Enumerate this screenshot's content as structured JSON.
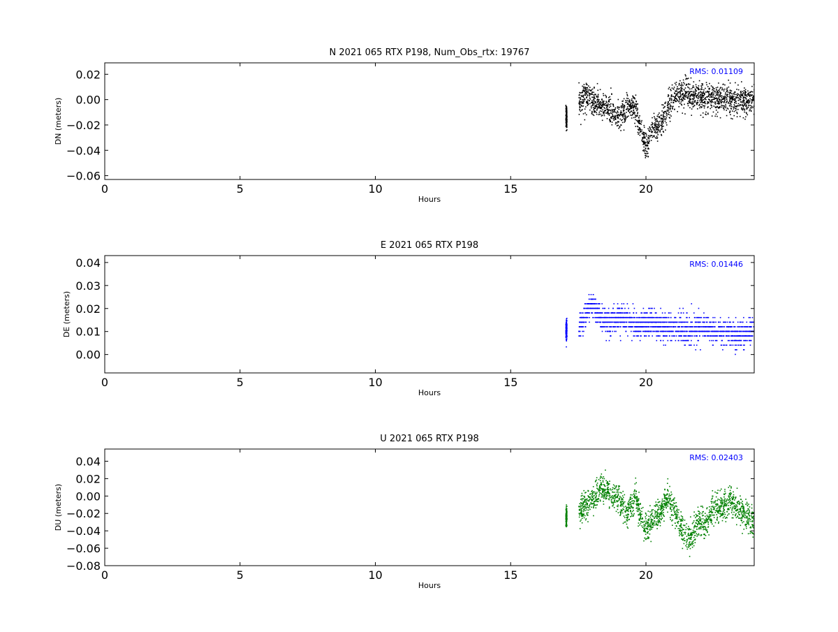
{
  "chart_data": [
    {
      "type": "scatter",
      "title": "N 2021 065 RTX  P198, Num_Obs_rtx: 19767",
      "xlabel": "Hours",
      "ylabel": "DN (meters)",
      "xlim": [
        0,
        24
      ],
      "ylim": [
        -0.063,
        0.029
      ],
      "xticks": [
        0,
        5,
        10,
        15,
        20
      ],
      "xtick_labels": [
        "0",
        "5",
        "10",
        "15",
        "20"
      ],
      "yticks": [
        0.02,
        0.0,
        -0.02,
        -0.04,
        -0.06
      ],
      "ytick_labels": [
        "0.02",
        "0.00",
        "−0.02",
        "−0.04",
        "−0.06"
      ],
      "color": "#000000",
      "annotation": "RMS:  0.01109",
      "annotation_color": "#0000ff",
      "series_profile": {
        "x": [
          17.0,
          17.5,
          17.8,
          18.1,
          18.5,
          18.8,
          19.0,
          19.3,
          19.6,
          19.8,
          20.0,
          20.2,
          20.5,
          20.8,
          21.0,
          21.3,
          21.6,
          22.0,
          22.5,
          23.0,
          23.5,
          24.0
        ],
        "y": [
          -0.014,
          -0.002,
          0.004,
          -0.004,
          -0.006,
          -0.01,
          -0.016,
          -0.006,
          -0.008,
          -0.026,
          -0.04,
          -0.024,
          -0.02,
          -0.006,
          0.002,
          0.005,
          0.004,
          0.002,
          0.0,
          0.0,
          -0.002,
          0.0
        ]
      }
    },
    {
      "type": "scatter",
      "title": "E 2021 065 RTX  P198",
      "xlabel": "Hours",
      "ylabel": "DE (meters)",
      "xlim": [
        0,
        24
      ],
      "ylim": [
        -0.008,
        0.043
      ],
      "xticks": [
        0,
        5,
        10,
        15,
        20
      ],
      "xtick_labels": [
        "0",
        "5",
        "10",
        "15",
        "20"
      ],
      "yticks": [
        0.04,
        0.03,
        0.02,
        0.01,
        0.0
      ],
      "ytick_labels": [
        "0.04",
        "0.03",
        "0.02",
        "0.01",
        "0.00"
      ],
      "color": "#0000ff",
      "annotation": "RMS:  0.01446",
      "annotation_color": "#0000ff",
      "series_profile": {
        "x": [
          17.0,
          17.5,
          17.8,
          18.0,
          18.3,
          18.6,
          19.0,
          19.4,
          19.7,
          20.0,
          20.5,
          21.0,
          21.5,
          22.0,
          22.5,
          23.0,
          23.5,
          24.0
        ],
        "y": [
          0.01,
          0.012,
          0.018,
          0.022,
          0.016,
          0.014,
          0.016,
          0.014,
          0.012,
          0.014,
          0.012,
          0.012,
          0.01,
          0.012,
          0.01,
          0.01,
          0.008,
          0.012
        ]
      }
    },
    {
      "type": "scatter",
      "title": "U 2021 065 RTX  P198",
      "xlabel": "Hours",
      "ylabel": "DU (meters)",
      "xlim": [
        0,
        24
      ],
      "ylim": [
        -0.08,
        0.054
      ],
      "xticks": [
        0,
        5,
        10,
        15,
        20
      ],
      "xtick_labels": [
        "0",
        "5",
        "10",
        "15",
        "20"
      ],
      "yticks": [
        0.04,
        0.02,
        0.0,
        -0.02,
        -0.04,
        -0.06,
        -0.08
      ],
      "ytick_labels": [
        "0.04",
        "0.02",
        "0.00",
        "−0.02",
        "−0.04",
        "−0.06",
        "−0.08"
      ],
      "color": "#008000",
      "annotation": "RMS:  0.02403",
      "annotation_color": "#0000ff",
      "series_profile": {
        "x": [
          17.0,
          17.5,
          17.8,
          18.0,
          18.3,
          18.6,
          19.0,
          19.3,
          19.6,
          19.9,
          20.2,
          20.5,
          20.8,
          21.0,
          21.3,
          21.6,
          21.9,
          22.2,
          22.5,
          22.8,
          23.1,
          23.4,
          23.7,
          24.0
        ],
        "y": [
          -0.025,
          -0.018,
          -0.01,
          -0.005,
          0.01,
          0.005,
          -0.005,
          -0.02,
          0.0,
          -0.04,
          -0.03,
          -0.02,
          0.0,
          -0.015,
          -0.04,
          -0.05,
          -0.03,
          -0.035,
          -0.01,
          -0.015,
          -0.005,
          -0.015,
          -0.025,
          -0.03
        ]
      }
    }
  ]
}
